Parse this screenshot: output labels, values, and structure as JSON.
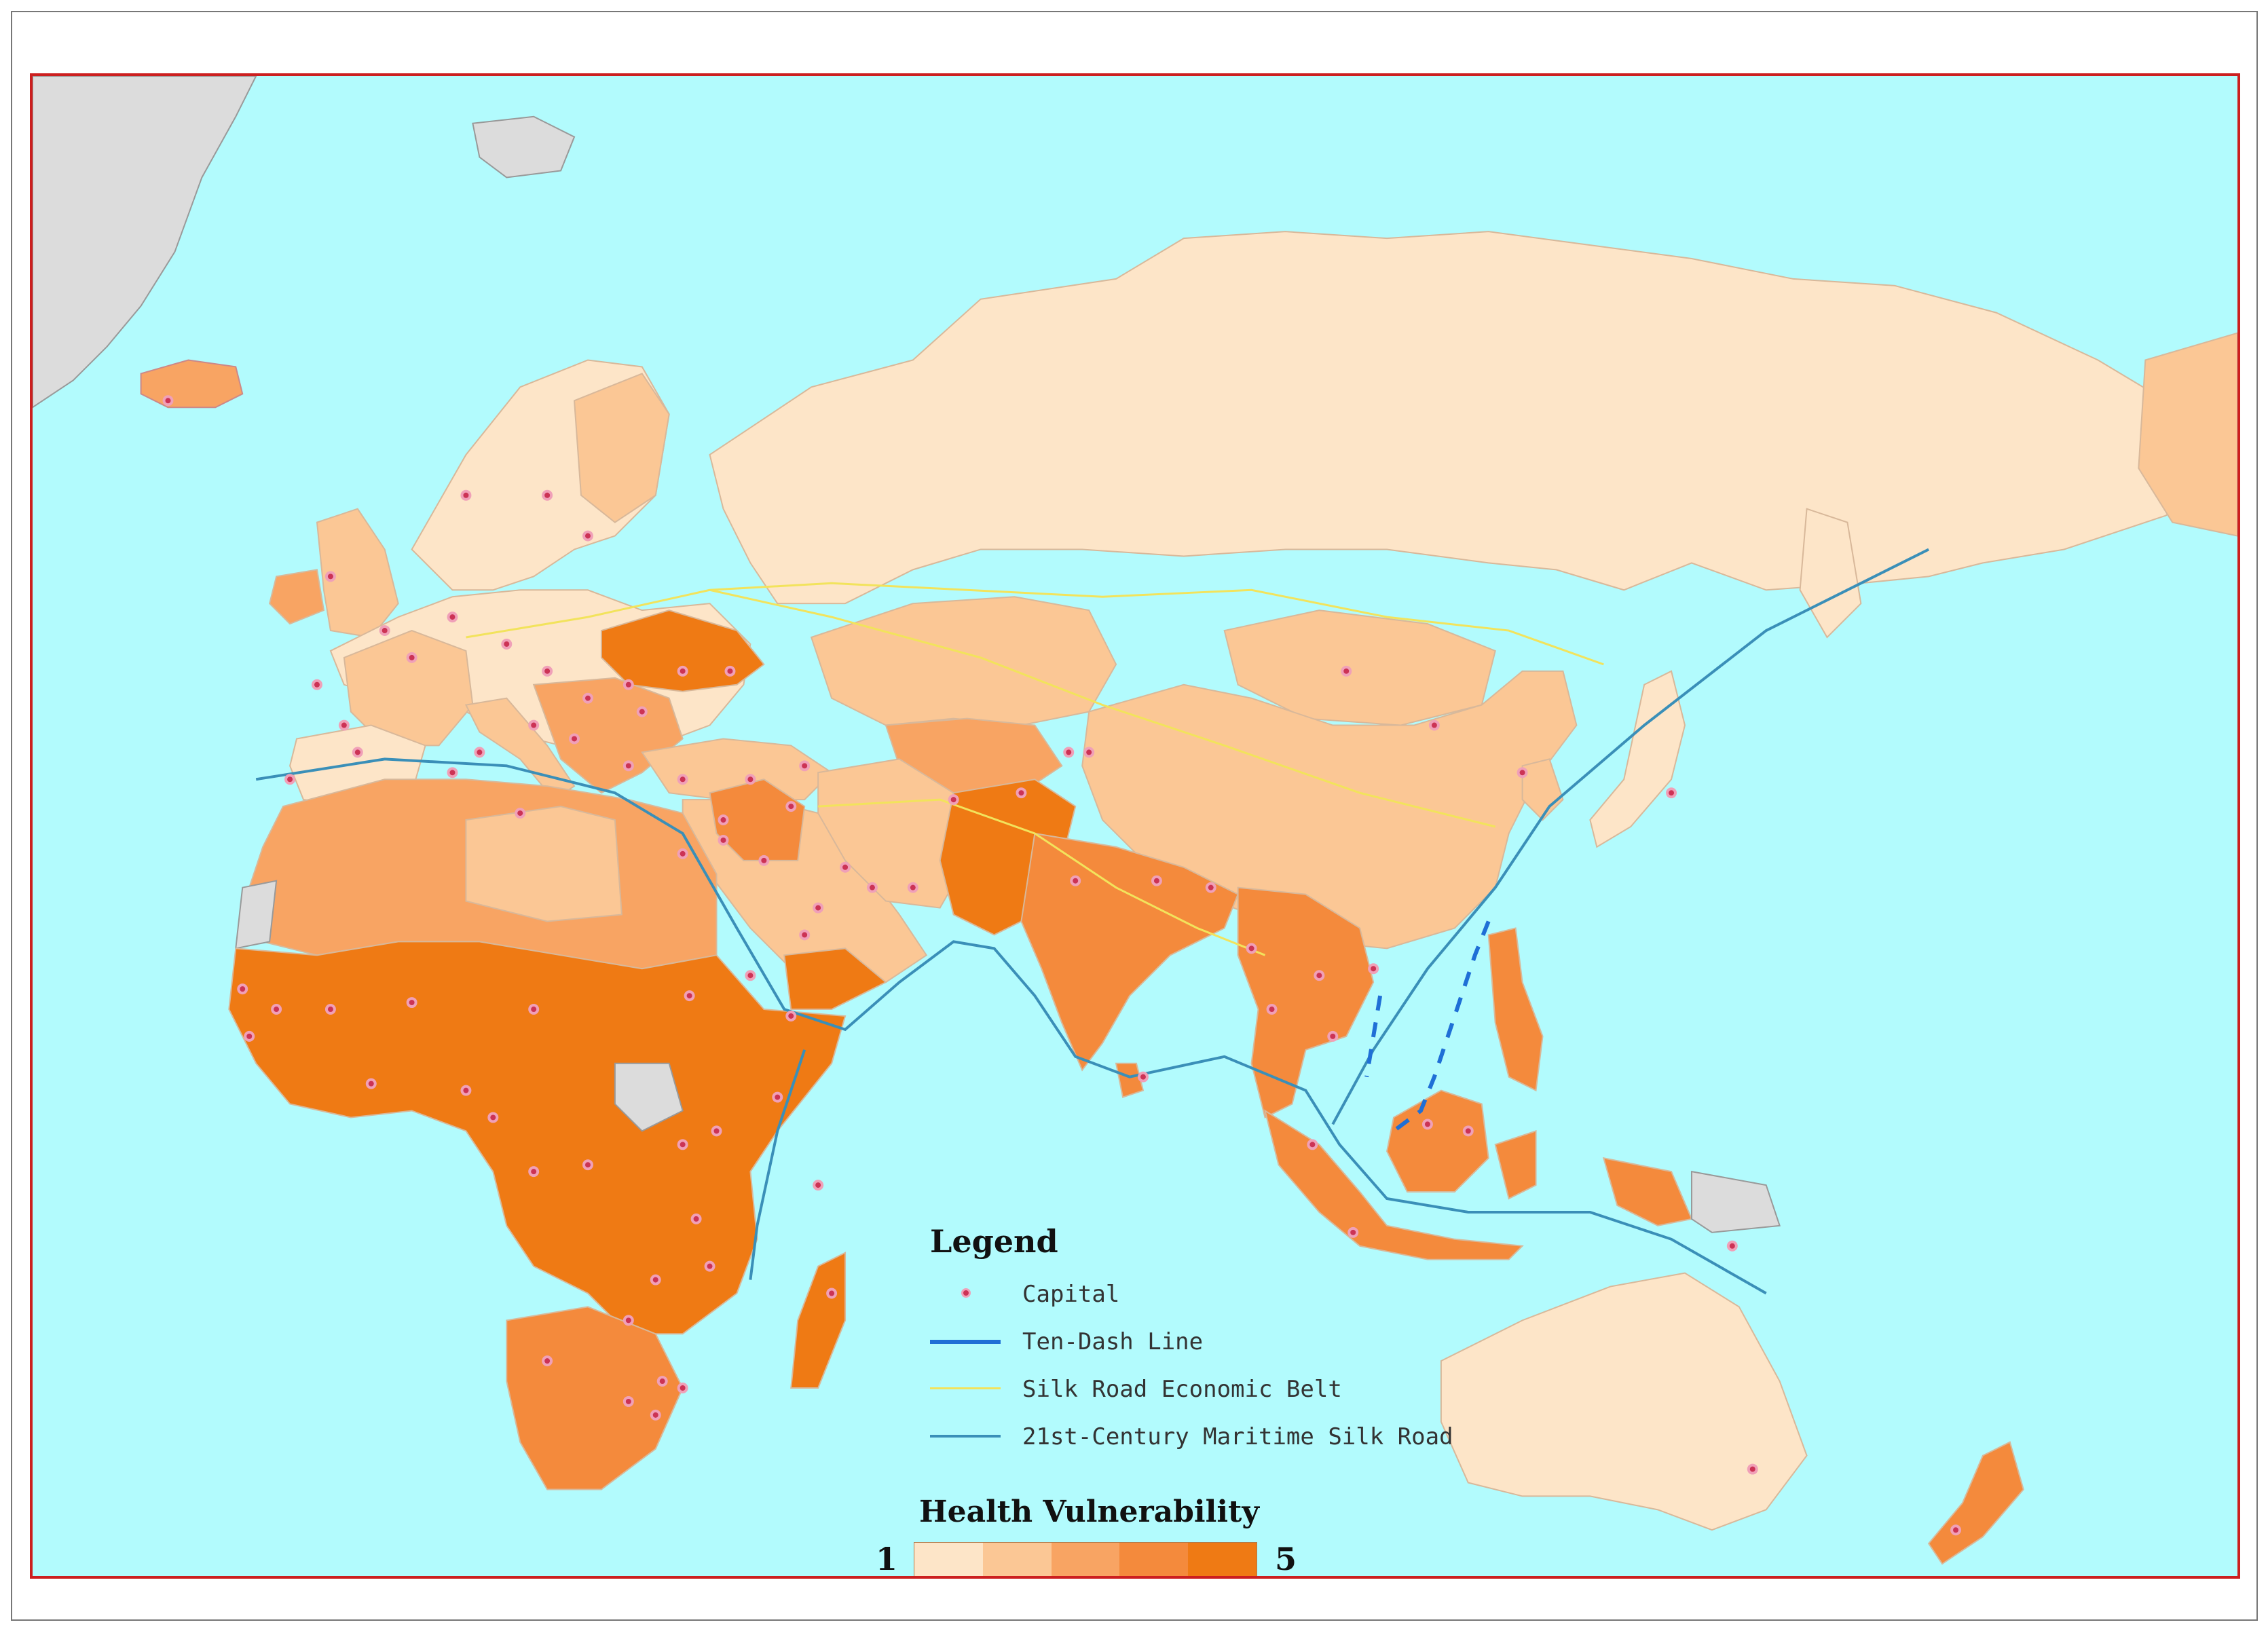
{
  "map": {
    "ocean_color": "#b2fbfd",
    "land_noneligible_color": "#dcdcdc",
    "frame_color": "#cc1f1f",
    "regions": [
      {
        "name": "Russia",
        "level": 1
      },
      {
        "name": "Kazakhstan",
        "level": 2
      },
      {
        "name": "China",
        "level": 2
      },
      {
        "name": "Mongolia",
        "level": 2
      },
      {
        "name": "Western Europe",
        "level": 1
      },
      {
        "name": "Ukraine",
        "level": 5
      },
      {
        "name": "Middle East",
        "level": 2
      },
      {
        "name": "Pakistan / Afghanistan",
        "level": 5
      },
      {
        "name": "India",
        "level": 4
      },
      {
        "name": "Southeast Asia",
        "level": 4
      },
      {
        "name": "Indonesia",
        "level": 4
      },
      {
        "name": "North Africa",
        "level": 3
      },
      {
        "name": "Sub-Saharan Africa",
        "level": 5
      },
      {
        "name": "Southern Africa",
        "level": 4
      },
      {
        "name": "Madagascar",
        "level": 5
      },
      {
        "name": "Australia",
        "level": 1
      },
      {
        "name": "New Zealand",
        "level": 4
      },
      {
        "name": "Iceland",
        "level": 3
      }
    ]
  },
  "legend": {
    "title": "Legend",
    "items": [
      {
        "key": "capital",
        "label": "Capital",
        "color": "#cc3355"
      },
      {
        "key": "ten_dash",
        "label": "Ten-Dash Line",
        "color": "#1f6fd6"
      },
      {
        "key": "silk_belt",
        "label": "Silk Road Economic Belt",
        "color": "#f2e35c"
      },
      {
        "key": "maritime",
        "label": "21st-Century Maritime Silk Road",
        "color": "#3a8fb8"
      }
    ]
  },
  "health_vulnerability": {
    "title": "Health Vulnerability",
    "min_label": "1",
    "max_label": "5",
    "colors": [
      "#fde5c8",
      "#fbc795",
      "#f8a463",
      "#f48a3c",
      "#ef7a14"
    ]
  }
}
